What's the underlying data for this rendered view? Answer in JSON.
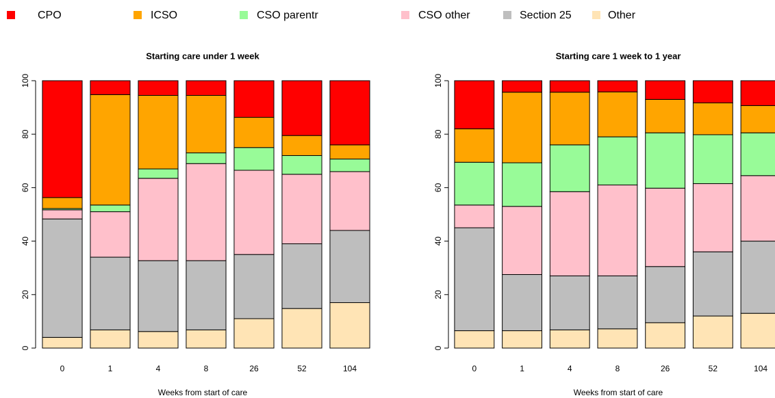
{
  "chart_data": [
    {
      "type": "stacked-bar",
      "title": "Starting care under 1 week",
      "x_label": "Weeks from start of care",
      "categories": [
        "0",
        "1",
        "4",
        "8",
        "26",
        "52",
        "104"
      ],
      "ylim": [
        0,
        100
      ],
      "yticks": [
        0,
        20,
        40,
        60,
        80,
        100
      ],
      "series": [
        {
          "name": "CPO",
          "color": "#ff0000",
          "values": [
            43.7,
            5.2,
            5.5,
            5.5,
            13.7,
            20.5,
            24
          ]
        },
        {
          "name": "ICSO",
          "color": "#ffa500",
          "values": [
            4.1,
            41.3,
            27.5,
            21.5,
            11.3,
            7.5,
            5.3
          ]
        },
        {
          "name": "CSO parentr",
          "color": "#98fb98",
          "values": [
            0.5,
            2.5,
            3.5,
            4,
            8.5,
            7,
            4.7
          ]
        },
        {
          "name": "CSO other",
          "color": "#ffc0cb",
          "values": [
            3.4,
            17,
            30.8,
            36.3,
            31.5,
            26,
            22
          ]
        },
        {
          "name": "Section 25",
          "color": "#bebebe",
          "values": [
            44.3,
            27.2,
            26.5,
            25.9,
            24,
            24.2,
            27
          ]
        },
        {
          "name": "Other",
          "color": "#ffe4b5",
          "values": [
            4,
            6.8,
            6.2,
            6.8,
            11,
            14.8,
            17
          ]
        }
      ]
    },
    {
      "type": "stacked-bar",
      "title": "Starting care 1 week to 1 year",
      "x_label": "Weeks from start of care",
      "categories": [
        "0",
        "1",
        "4",
        "8",
        "26",
        "52",
        "104"
      ],
      "ylim": [
        0,
        100
      ],
      "yticks": [
        0,
        20,
        40,
        60,
        80,
        100
      ],
      "series": [
        {
          "color": "#ff0000",
          "values": [
            18,
            4.3,
            4.3,
            4.2,
            7,
            8.3,
            9.3
          ]
        },
        {
          "color": "#ffa500",
          "values": [
            12.5,
            26.4,
            19.7,
            16.8,
            12.5,
            11.9,
            10.2
          ]
        },
        {
          "color": "#98fb98",
          "values": [
            16,
            16.3,
            17.5,
            18,
            20.7,
            18.3,
            16
          ]
        },
        {
          "color": "#ffc0cb",
          "values": [
            8.5,
            25.5,
            31.5,
            34,
            29.3,
            25.5,
            24.5
          ]
        },
        {
          "color": "#bebebe",
          "values": [
            38.5,
            21,
            20.2,
            19.8,
            21,
            24,
            27
          ]
        },
        {
          "color": "#ffe4b5",
          "values": [
            6.5,
            6.5,
            6.8,
            7.2,
            9.5,
            12,
            13
          ]
        }
      ]
    }
  ]
}
